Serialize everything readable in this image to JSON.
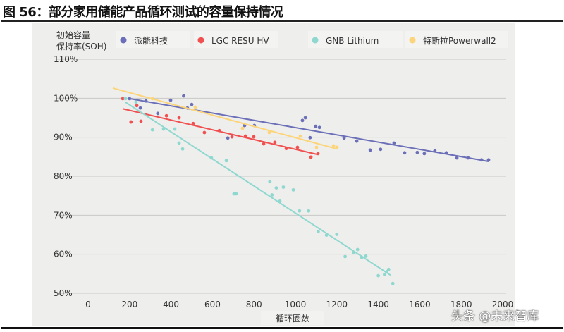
{
  "title": "图 56：部分家用储能产品循环测试的容量保持情况",
  "watermark": "头条 @未来智库",
  "chart_data": {
    "type": "scatter",
    "title": "部分家用储能产品循环测试的容量保持情况",
    "xlabel": "循环圈数",
    "ylabel": "初始容量保持率(SOH)",
    "ylabel_lines": [
      "初始容量",
      "保持率(SOH)"
    ],
    "xlim": [
      0,
      2000
    ],
    "ylim": [
      50,
      110
    ],
    "xticks": [
      0,
      200,
      400,
      600,
      800,
      1000,
      1200,
      1400,
      1600,
      1800,
      2000
    ],
    "yticks": [
      50,
      60,
      70,
      80,
      90,
      100,
      110
    ],
    "ytick_labels": [
      "50%",
      "60%",
      "70%",
      "80%",
      "90%",
      "100%",
      "110%"
    ],
    "grid": true,
    "legend_position": "top",
    "series": [
      {
        "name": "派能科技",
        "color": "#6b6fb8",
        "trend": [
          [
            200,
            99.9
          ],
          [
            1932,
            83.8
          ]
        ],
        "points": [
          [
            200,
            99.9
          ],
          [
            252,
            97.5
          ],
          [
            279,
            99.3
          ],
          [
            336,
            96.1
          ],
          [
            398,
            99.5
          ],
          [
            461,
            100.6
          ],
          [
            479,
            97.5
          ],
          [
            500,
            98.4
          ],
          [
            674,
            89.8
          ],
          [
            755,
            93
          ],
          [
            802,
            93
          ],
          [
            1034,
            94.3
          ],
          [
            1048,
            95
          ],
          [
            1071,
            89.9
          ],
          [
            1098,
            92.8
          ],
          [
            1116,
            92.5
          ],
          [
            1235,
            89.8
          ],
          [
            1296,
            89
          ],
          [
            1361,
            86.7
          ],
          [
            1411,
            86.9
          ],
          [
            1476,
            88.5
          ],
          [
            1527,
            86
          ],
          [
            1588,
            86.1
          ],
          [
            1622,
            85.8
          ],
          [
            1673,
            86.5
          ],
          [
            1728,
            86
          ],
          [
            1779,
            84.7
          ],
          [
            1833,
            84.7
          ],
          [
            1898,
            84.2
          ],
          [
            1932,
            84.2
          ]
        ]
      },
      {
        "name": "LGC RESU HV",
        "color": "#f05050",
        "trend": [
          [
            167,
            97.3
          ],
          [
            1105,
            85.6
          ]
        ],
        "points": [
          [
            167,
            99.9
          ],
          [
            207,
            93.9
          ],
          [
            235,
            98.1
          ],
          [
            255,
            94.1
          ],
          [
            378,
            95.5
          ],
          [
            439,
            95
          ],
          [
            507,
            93.5
          ],
          [
            561,
            91.2
          ],
          [
            633,
            91.7
          ],
          [
            694,
            90.1
          ],
          [
            759,
            90.3
          ],
          [
            799,
            90.1
          ],
          [
            847,
            88.3
          ],
          [
            901,
            88.7
          ],
          [
            956,
            87.1
          ],
          [
            1010,
            87.4
          ],
          [
            1075,
            84.9
          ],
          [
            1109,
            85.8
          ]
        ]
      },
      {
        "name": "GNB Lithium",
        "color": "#8fd8d0",
        "trend": [
          [
            180,
            99
          ],
          [
            1460,
            54.6
          ]
        ],
        "points": [
          [
            180,
            99.9
          ],
          [
            231,
            99
          ],
          [
            310,
            91.9
          ],
          [
            364,
            92.1
          ],
          [
            418,
            92.1
          ],
          [
            439,
            88.5
          ],
          [
            456,
            87
          ],
          [
            595,
            84.7
          ],
          [
            667,
            84
          ],
          [
            704,
            75.5
          ],
          [
            714,
            75.5
          ],
          [
            877,
            78.6
          ],
          [
            887,
            75.2
          ],
          [
            908,
            77
          ],
          [
            925,
            73.6
          ],
          [
            942,
            77.2
          ],
          [
            990,
            76.5
          ],
          [
            1020,
            71.1
          ],
          [
            1064,
            71.1
          ],
          [
            1110,
            65.8
          ],
          [
            1150,
            64.9
          ],
          [
            1200,
            65.1
          ],
          [
            1240,
            59.4
          ],
          [
            1280,
            60.5
          ],
          [
            1300,
            61.2
          ],
          [
            1320,
            59.2
          ],
          [
            1340,
            59.5
          ],
          [
            1400,
            54.5
          ],
          [
            1430,
            54.8
          ],
          [
            1440,
            55.5
          ],
          [
            1450,
            56.1
          ],
          [
            1470,
            52.5
          ]
        ]
      },
      {
        "name": "特斯拉Powerwall2",
        "color": "#fcd57a",
        "trend": [
          [
            119,
            102.6
          ],
          [
            1201,
            87
          ]
        ],
        "points": [
          [
            310,
            99.9
          ],
          [
            517,
            97.7
          ],
          [
            745,
            92.3
          ],
          [
            874,
            91.2
          ],
          [
            1024,
            90.3
          ],
          [
            1102,
            87.4
          ],
          [
            1184,
            87.8
          ],
          [
            1201,
            87.4
          ]
        ]
      }
    ]
  }
}
